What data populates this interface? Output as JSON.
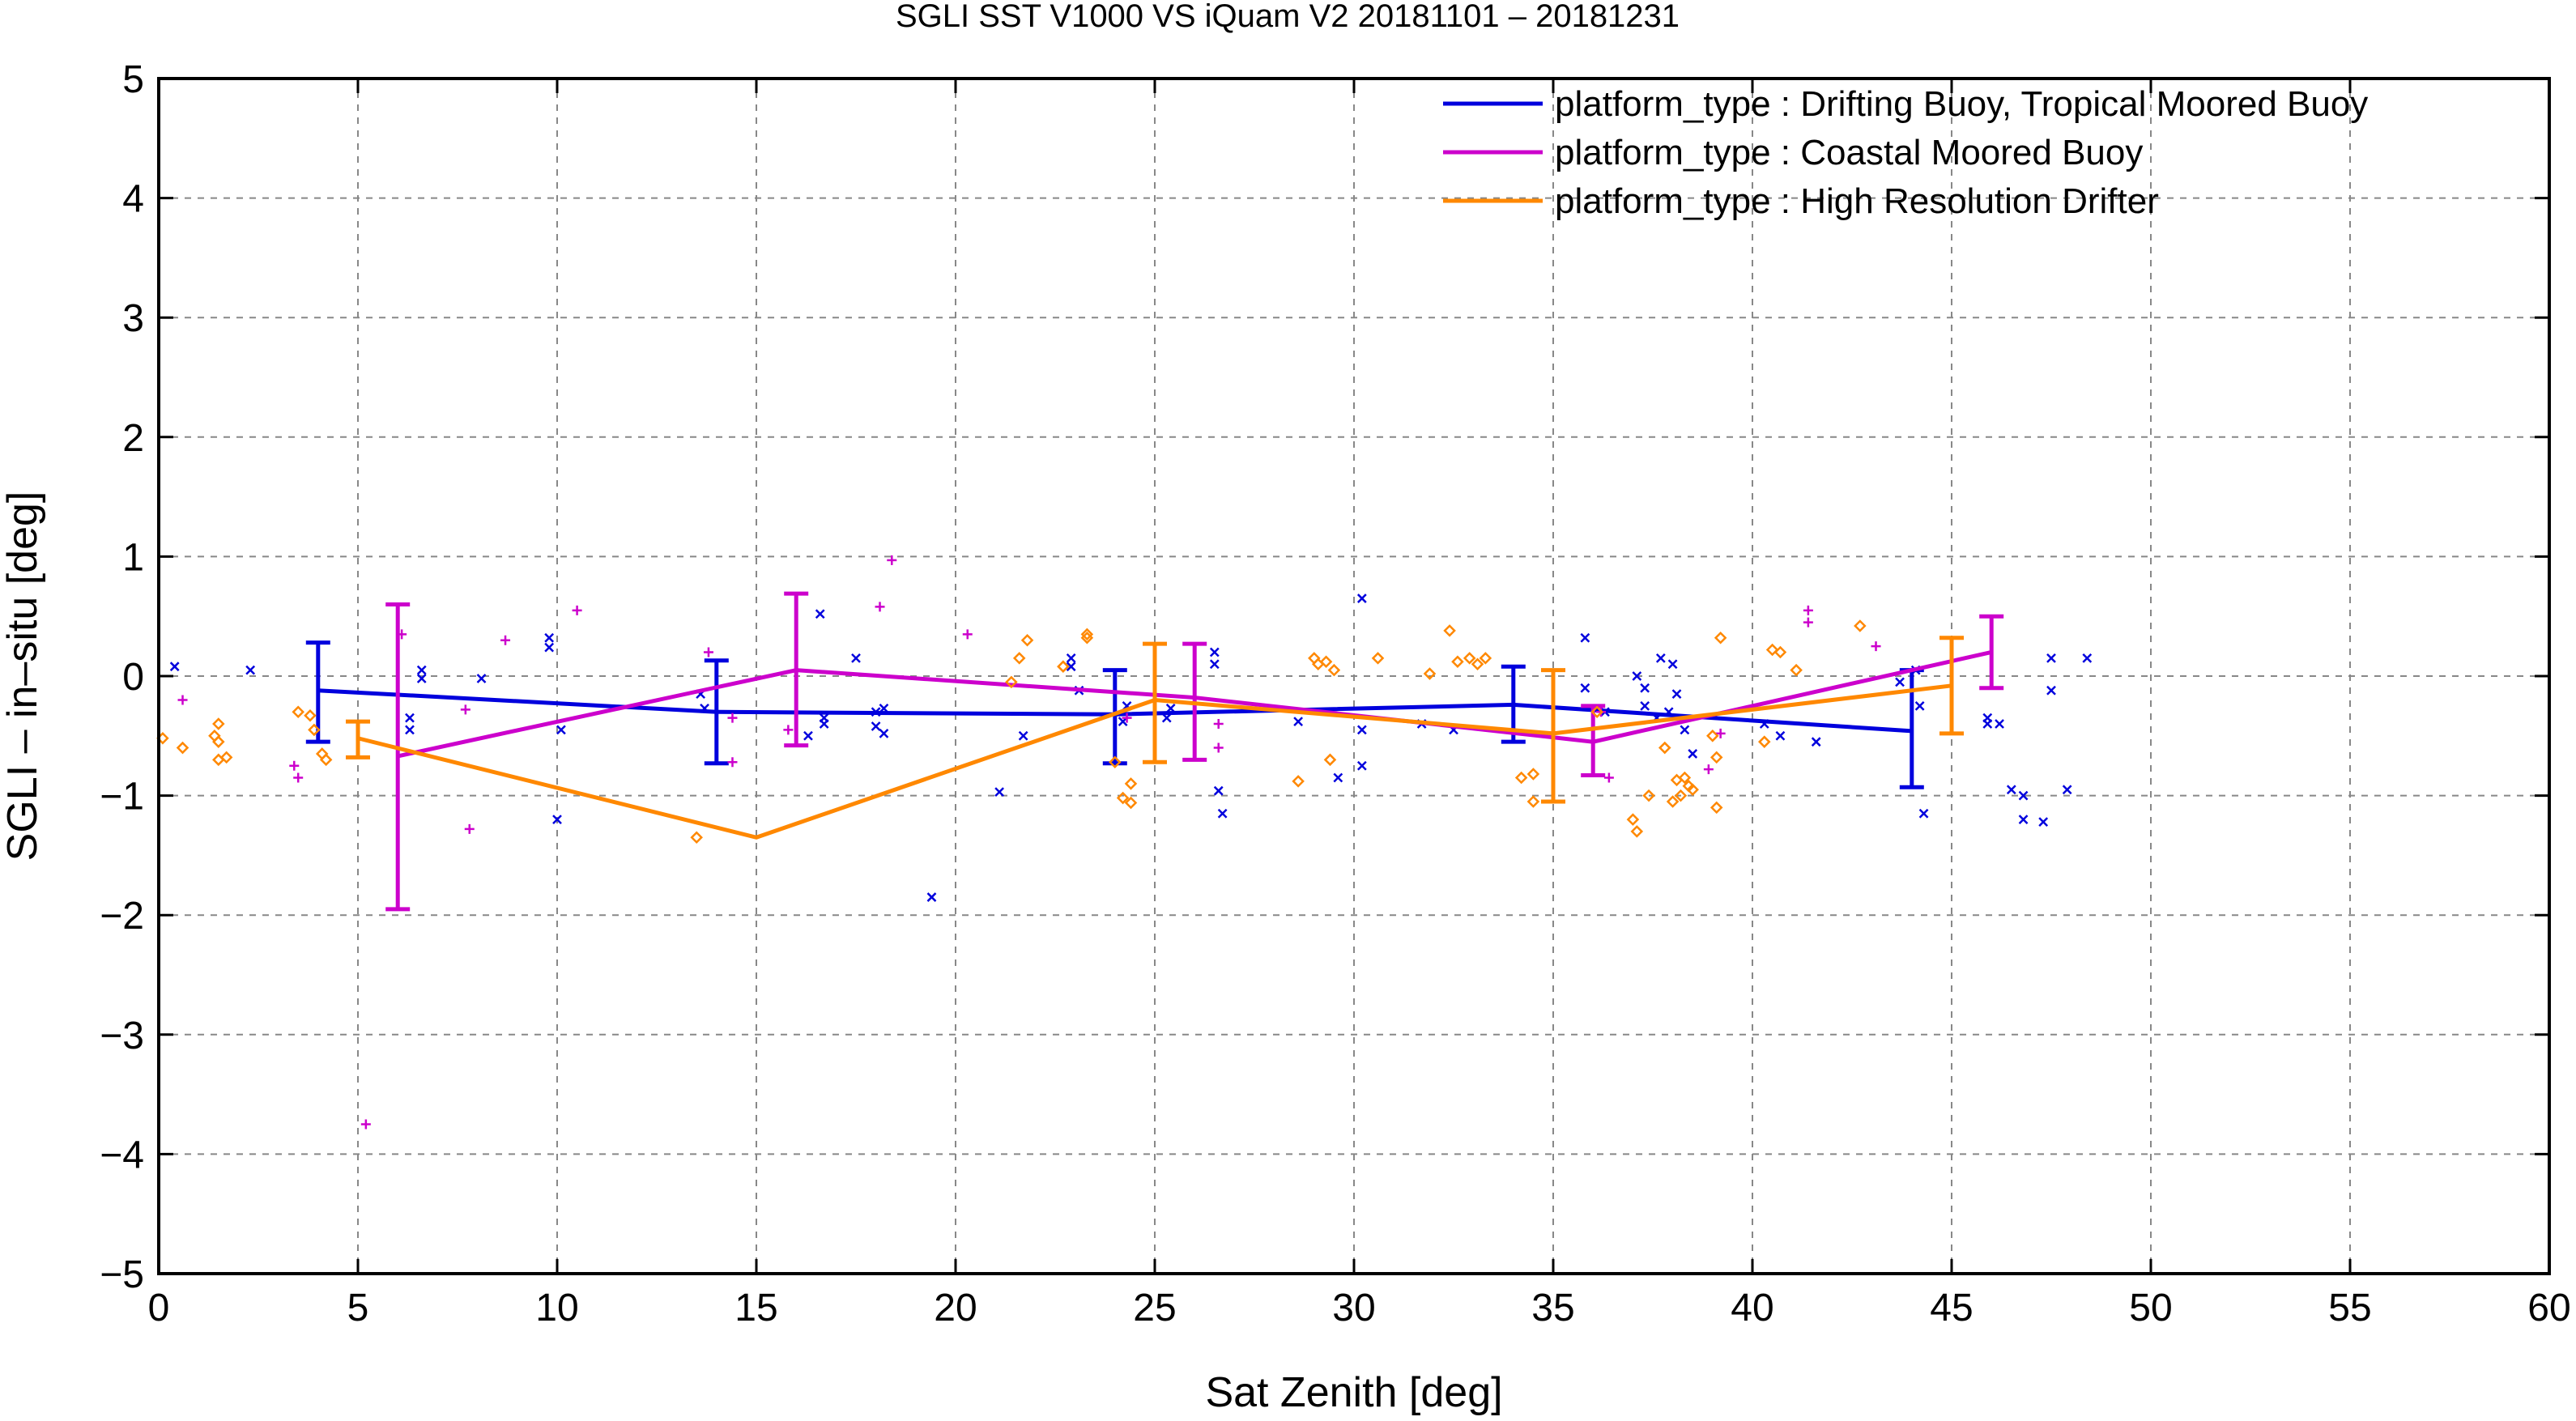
{
  "chart_data": {
    "type": "line",
    "title": "SGLI SST V1000 VS iQuam V2 20181101 – 20181231",
    "xlabel": "Sat Zenith [deg]",
    "ylabel": "SGLI – in–situ [deg]",
    "xlim": [
      0,
      60
    ],
    "ylim": [
      -5,
      5
    ],
    "xticks": [
      0,
      5,
      10,
      15,
      20,
      25,
      30,
      35,
      40,
      45,
      50,
      55,
      60
    ],
    "yticks": [
      -5,
      -4,
      -3,
      -2,
      -1,
      0,
      1,
      2,
      3,
      4,
      5
    ],
    "ytick_labels": [
      "−5",
      "−4",
      "−3",
      "−2",
      "−1",
      "0",
      "1",
      "2",
      "3",
      "4",
      "5"
    ],
    "grid": true,
    "legend_position": "top-right",
    "series": [
      {
        "name": "platform_type : Drifting Buoy, Tropical Moored Buoy",
        "color": "#0000dd",
        "marker": "x",
        "mean": [
          {
            "x": 4,
            "y": -0.12,
            "lo": -0.55,
            "hi": 0.28
          },
          {
            "x": 14,
            "y": -0.3,
            "lo": -0.73,
            "hi": 0.13
          },
          {
            "x": 24,
            "y": -0.32,
            "lo": -0.73,
            "hi": 0.05
          },
          {
            "x": 34,
            "y": -0.24,
            "lo": -0.55,
            "hi": 0.08
          },
          {
            "x": 44,
            "y": -0.46,
            "lo": -0.93,
            "hi": 0.05
          }
        ],
        "points": [
          [
            0.4,
            0.08
          ],
          [
            2.3,
            0.05
          ],
          [
            6.3,
            -0.35
          ],
          [
            6.3,
            -0.45
          ],
          [
            6.6,
            0.05
          ],
          [
            6.6,
            -0.02
          ],
          [
            8.1,
            -0.02
          ],
          [
            9.8,
            0.32
          ],
          [
            9.8,
            0.24
          ],
          [
            10,
            -1.2
          ],
          [
            10.1,
            -0.45
          ],
          [
            13.6,
            -0.15
          ],
          [
            13.7,
            -0.27
          ],
          [
            16.3,
            -0.5
          ],
          [
            16.6,
            0.52
          ],
          [
            16.7,
            -0.4
          ],
          [
            16.7,
            -0.35
          ],
          [
            17.5,
            0.15
          ],
          [
            18,
            -0.3
          ],
          [
            18,
            -0.42
          ],
          [
            18.2,
            -0.27
          ],
          [
            18.2,
            -0.48
          ],
          [
            19.4,
            -1.85
          ],
          [
            21.1,
            -0.97
          ],
          [
            21.7,
            -0.5
          ],
          [
            22.9,
            0.15
          ],
          [
            22.9,
            0.08
          ],
          [
            23.1,
            -0.12
          ],
          [
            24.2,
            -0.38
          ],
          [
            24.3,
            -0.25
          ],
          [
            25.3,
            -0.35
          ],
          [
            25.4,
            -0.27
          ],
          [
            26.5,
            0.2
          ],
          [
            26.5,
            0.1
          ],
          [
            26.6,
            -0.96
          ],
          [
            26.7,
            -1.15
          ],
          [
            28.6,
            -0.38
          ],
          [
            29.6,
            -0.85
          ],
          [
            30.2,
            0.65
          ],
          [
            30.2,
            -0.45
          ],
          [
            30.2,
            -0.75
          ],
          [
            31.7,
            -0.4
          ],
          [
            32.5,
            -0.45
          ],
          [
            35.8,
            0.32
          ],
          [
            35.8,
            -0.1
          ],
          [
            36.3,
            -0.3
          ],
          [
            37.1,
            0
          ],
          [
            37.3,
            -0.1
          ],
          [
            37.3,
            -0.25
          ],
          [
            37.6,
            -0.35
          ],
          [
            37.7,
            0.15
          ],
          [
            37.9,
            -0.3
          ],
          [
            38,
            0.1
          ],
          [
            38.1,
            -0.15
          ],
          [
            38.3,
            -0.45
          ],
          [
            38.5,
            -0.65
          ],
          [
            40.3,
            -0.4
          ],
          [
            40.7,
            -0.5
          ],
          [
            41.6,
            -0.55
          ],
          [
            44.1,
            0.05
          ],
          [
            44.2,
            -0.25
          ],
          [
            44.3,
            -1.15
          ],
          [
            45.9,
            -0.35
          ],
          [
            45.9,
            -0.4
          ],
          [
            46.2,
            -0.4
          ],
          [
            46.5,
            -0.95
          ],
          [
            46.8,
            -1
          ],
          [
            46.8,
            -1.2
          ],
          [
            47.5,
            0.15
          ],
          [
            47.5,
            -0.12
          ],
          [
            47.9,
            -0.95
          ],
          [
            48.4,
            0.15
          ],
          [
            47.3,
            -1.22
          ],
          [
            43.7,
            -0.05
          ]
        ]
      },
      {
        "name": "platform_type : Coastal Moored Buoy",
        "color": "#cc00cc",
        "marker": "+",
        "mean": [
          {
            "x": 6,
            "y": -0.67,
            "lo": -1.95,
            "hi": 0.6
          },
          {
            "x": 16,
            "y": 0.05,
            "lo": -0.58,
            "hi": 0.69
          },
          {
            "x": 26,
            "y": -0.18,
            "lo": -0.7,
            "hi": 0.27
          },
          {
            "x": 36,
            "y": -0.55,
            "lo": -0.83,
            "hi": -0.25
          },
          {
            "x": 46,
            "y": 0.2,
            "lo": -0.1,
            "hi": 0.5
          }
        ],
        "points": [
          [
            0.6,
            -0.2
          ],
          [
            3.4,
            -0.75
          ],
          [
            3.5,
            -0.85
          ],
          [
            5.2,
            -3.75
          ],
          [
            6.1,
            0.35
          ],
          [
            7.7,
            -0.28
          ],
          [
            7.8,
            -1.28
          ],
          [
            8.7,
            0.3
          ],
          [
            10.5,
            0.55
          ],
          [
            13.8,
            0.2
          ],
          [
            14.4,
            -0.35
          ],
          [
            14.4,
            -0.72
          ],
          [
            15.8,
            -0.45
          ],
          [
            18.1,
            0.58
          ],
          [
            18.4,
            0.97
          ],
          [
            20.3,
            0.35
          ],
          [
            24.3,
            -0.35
          ],
          [
            26.6,
            -0.4
          ],
          [
            26.6,
            -0.6
          ],
          [
            36.2,
            -0.3
          ],
          [
            36.4,
            -0.85
          ],
          [
            38.9,
            -0.78
          ],
          [
            39.2,
            -0.48
          ],
          [
            41.4,
            0.55
          ],
          [
            41.4,
            0.45
          ],
          [
            43.1,
            0.25
          ]
        ]
      },
      {
        "name": "platform_type : High Resolution Drifter",
        "color": "#ff8800",
        "marker": "diamond",
        "mean": [
          {
            "x": 5,
            "y": -0.52,
            "lo": -0.68,
            "hi": -0.38
          },
          {
            "x": 15,
            "y": -1.35,
            "lo": null,
            "hi": null
          },
          {
            "x": 25,
            "y": -0.2,
            "lo": -0.72,
            "hi": 0.27
          },
          {
            "x": 35,
            "y": -0.48,
            "lo": -1.05,
            "hi": 0.05
          },
          {
            "x": 45,
            "y": -0.08,
            "lo": -0.48,
            "hi": 0.32
          }
        ],
        "points": [
          [
            0.1,
            -0.52
          ],
          [
            0.6,
            -0.6
          ],
          [
            1.4,
            -0.5
          ],
          [
            1.5,
            -0.4
          ],
          [
            1.5,
            -0.55
          ],
          [
            1.5,
            -0.7
          ],
          [
            1.7,
            -0.68
          ],
          [
            3.5,
            -0.3
          ],
          [
            3.8,
            -0.33
          ],
          [
            3.9,
            -0.45
          ],
          [
            4.1,
            -0.65
          ],
          [
            4.2,
            -0.7
          ],
          [
            13.5,
            -1.35
          ],
          [
            21.4,
            -0.05
          ],
          [
            21.6,
            0.15
          ],
          [
            21.8,
            0.3
          ],
          [
            22.7,
            0.08
          ],
          [
            23.3,
            0.32
          ],
          [
            23.3,
            0.35
          ],
          [
            24.0,
            -0.72
          ],
          [
            24.2,
            -1.02
          ],
          [
            24.4,
            -1.06
          ],
          [
            24.4,
            -0.9
          ],
          [
            28.6,
            -0.88
          ],
          [
            29.0,
            0.15
          ],
          [
            29.1,
            0.1
          ],
          [
            29.3,
            0.12
          ],
          [
            29.4,
            -0.7
          ],
          [
            29.5,
            0.05
          ],
          [
            30.6,
            0.15
          ],
          [
            31.9,
            0.02
          ],
          [
            32.4,
            0.38
          ],
          [
            32.6,
            0.12
          ],
          [
            32.9,
            0.15
          ],
          [
            33.1,
            0.1
          ],
          [
            33.3,
            0.15
          ],
          [
            34.2,
            -0.85
          ],
          [
            34.5,
            -0.82
          ],
          [
            34.5,
            -1.05
          ],
          [
            36.1,
            -0.3
          ],
          [
            37.0,
            -1.2
          ],
          [
            37.1,
            -1.3
          ],
          [
            37.4,
            -1
          ],
          [
            37.8,
            -0.6
          ],
          [
            38.0,
            -1.05
          ],
          [
            38.1,
            -0.87
          ],
          [
            38.2,
            -1
          ],
          [
            38.3,
            -0.85
          ],
          [
            38.4,
            -0.92
          ],
          [
            38.5,
            -0.95
          ],
          [
            39.1,
            -0.68
          ],
          [
            39.1,
            -1.1
          ],
          [
            39.2,
            0.32
          ],
          [
            40.3,
            -0.55
          ],
          [
            40.5,
            0.22
          ],
          [
            40.7,
            0.2
          ],
          [
            41.1,
            0.05
          ],
          [
            42.7,
            0.42
          ],
          [
            39.0,
            -0.5
          ]
        ]
      }
    ]
  }
}
